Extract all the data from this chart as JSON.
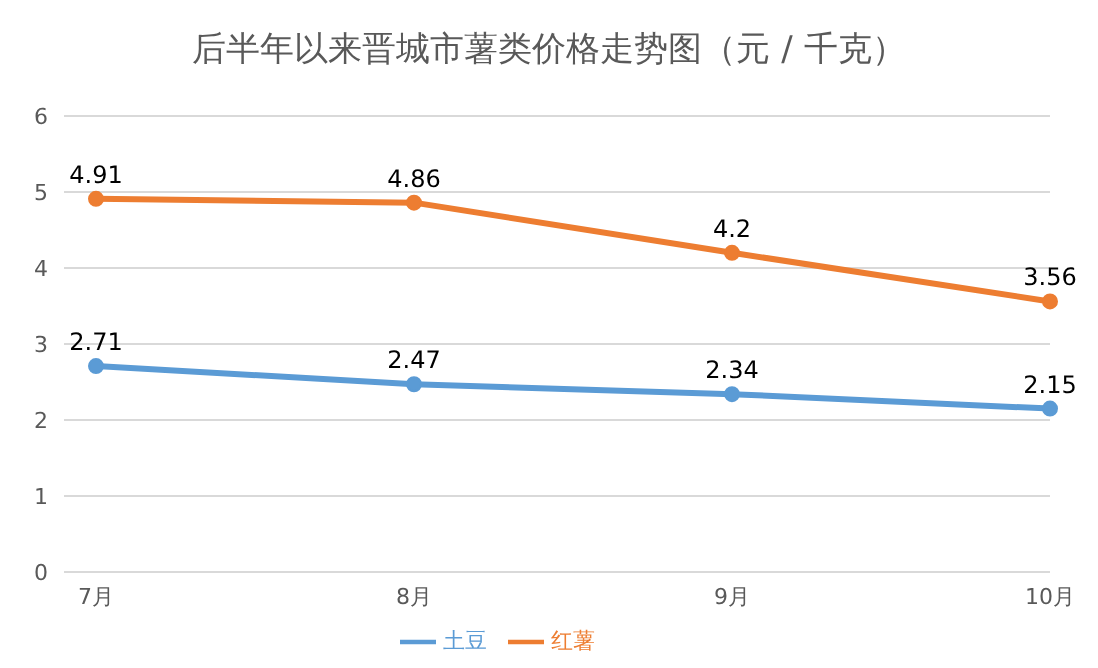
{
  "chart_data": {
    "type": "line",
    "title": "后半年以来晋城市薯类价格走势图（元 / 千克）",
    "categories": [
      "7月",
      "8月",
      "9月",
      "10月"
    ],
    "series": [
      {
        "name": "土豆",
        "color": "#5b9bd5",
        "values": [
          2.71,
          2.47,
          2.34,
          2.15
        ]
      },
      {
        "name": "红薯",
        "color": "#ed7d31",
        "values": [
          4.91,
          4.86,
          4.2,
          3.56
        ]
      }
    ],
    "ylim": [
      0,
      6
    ],
    "yticks": [
      0,
      1,
      2,
      3,
      4,
      5,
      6
    ],
    "grid": "y",
    "legend": "bottom",
    "marker": "circle",
    "line_style": "solid",
    "data_labels": true
  }
}
